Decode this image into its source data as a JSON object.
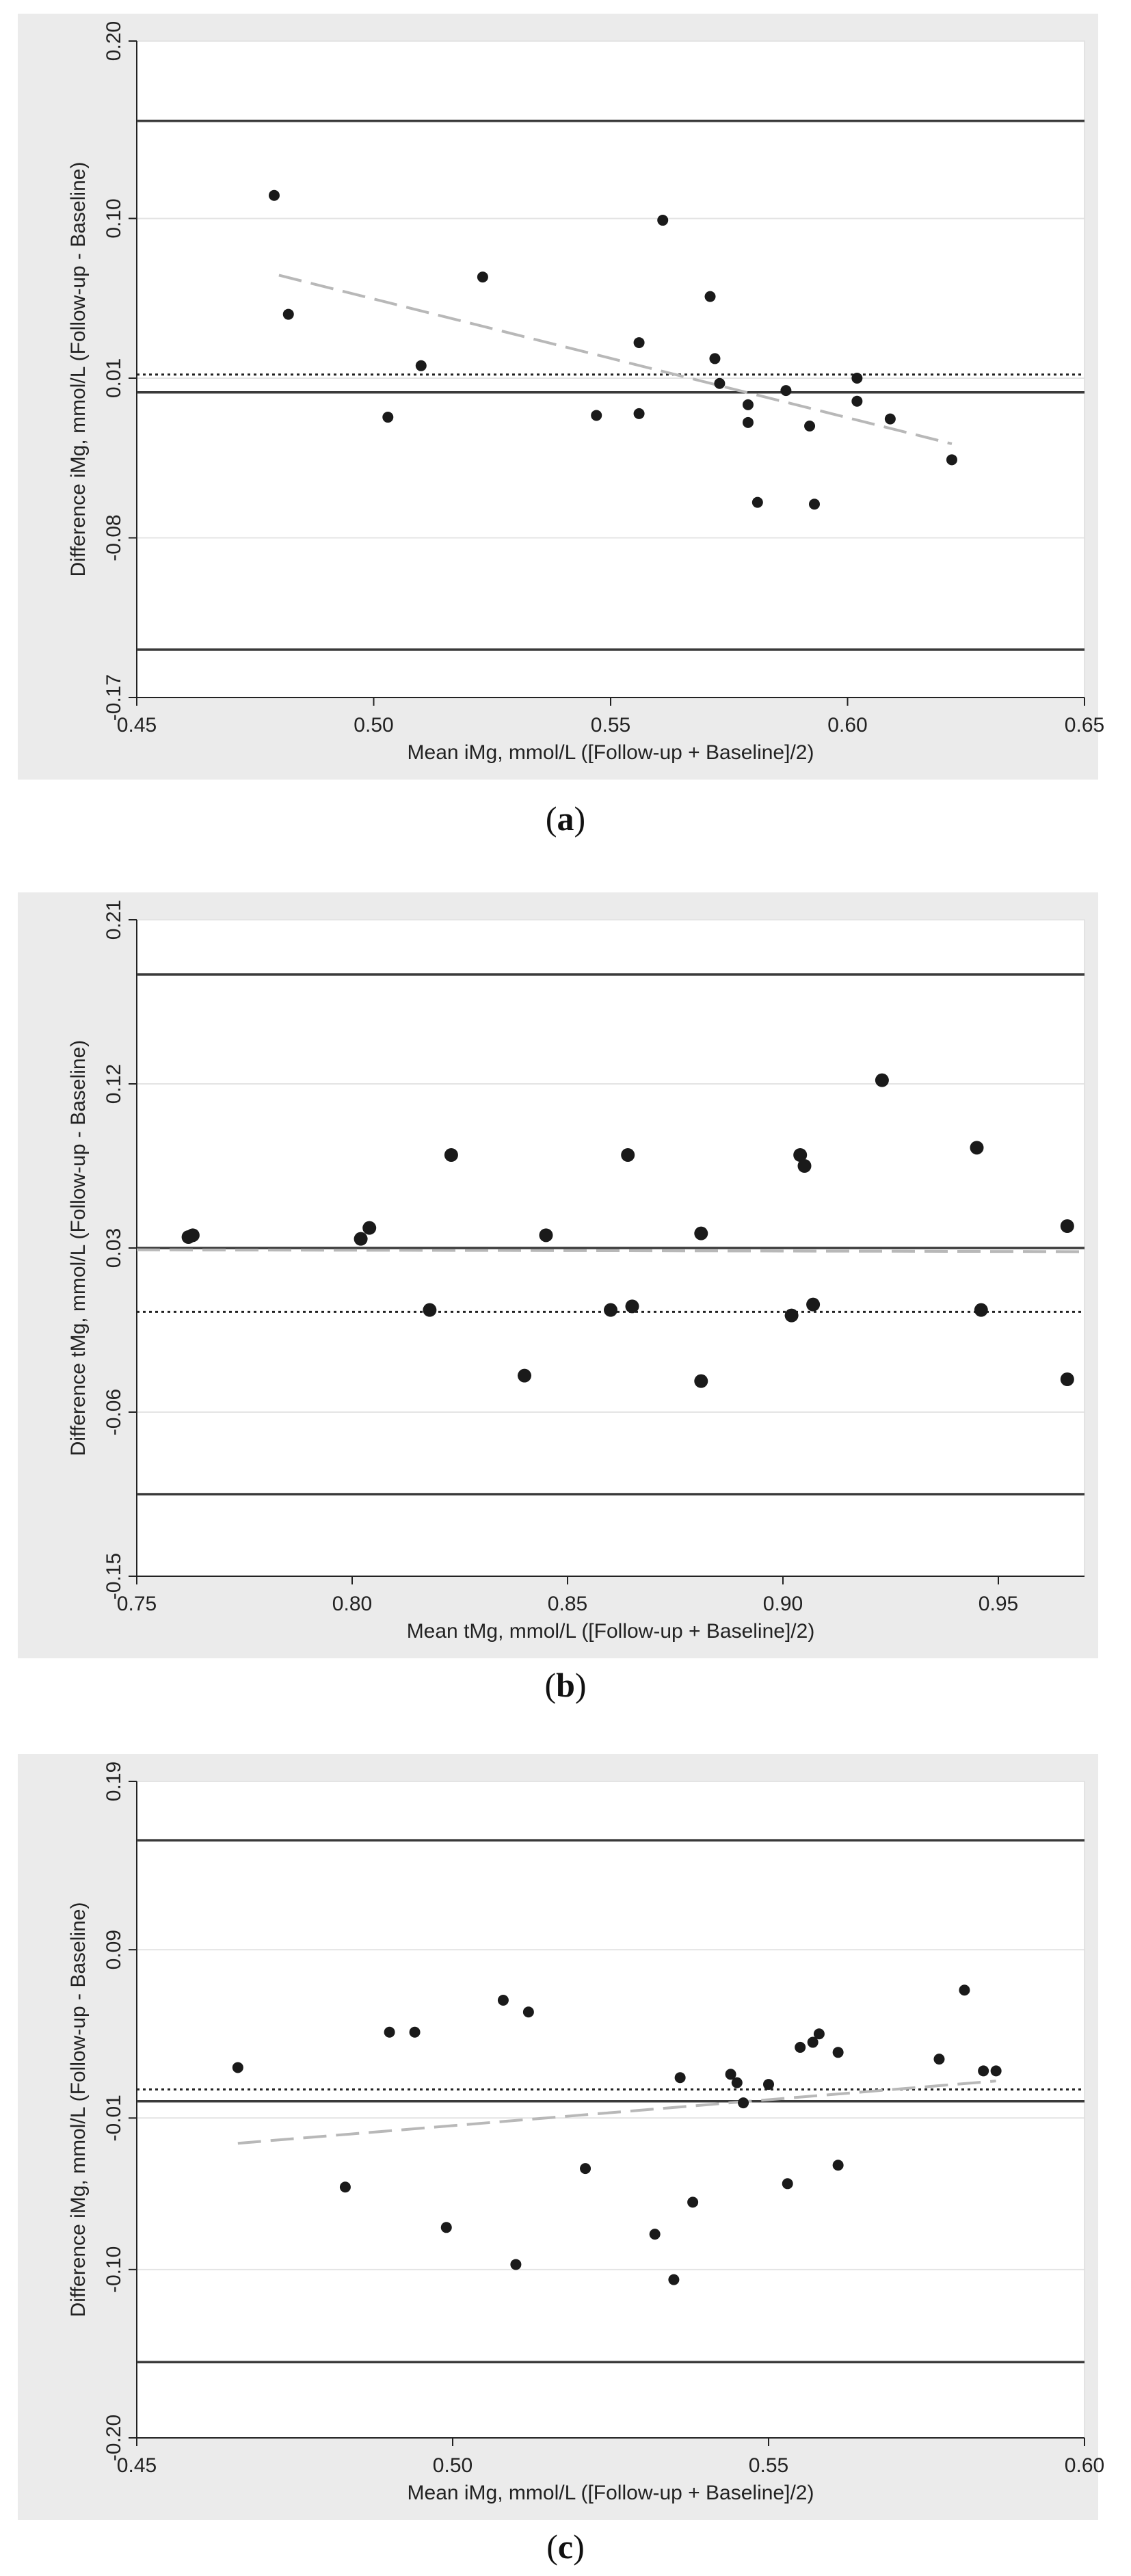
{
  "figures": [
    {
      "caption_letter": "a",
      "chart_data": {
        "type": "scatter",
        "xlabel": "Mean iMg, mmol/L ([Follow-up + Baseline]/2)",
        "ylabel": "Difference iMg, mmol/L (Follow-up - Baseline)",
        "xlim": [
          0.45,
          0.65
        ],
        "ylim": [
          -0.17,
          0.2
        ],
        "x_ticks": [
          "0.45",
          "0.50",
          "0.55",
          "0.60",
          "0.65"
        ],
        "y_ticks": [
          "-0.17",
          "-0.08",
          "0.01",
          "0.10",
          "0.20"
        ],
        "y_tick_values": [
          -0.17,
          -0.08,
          0.01,
          0.1,
          0.2
        ],
        "grid": "horizontal",
        "reference_lines": {
          "upper_loa": 0.155,
          "mean_difference": 0.012,
          "lower_loa": -0.143,
          "zero": 0.002
        },
        "regression_line": {
          "style": "dashed",
          "x": [
            0.48,
            0.622
          ],
          "y": [
            0.068,
            -0.027
          ]
        },
        "points": [
          {
            "x": 0.479,
            "y": 0.113
          },
          {
            "x": 0.482,
            "y": 0.046
          },
          {
            "x": 0.503,
            "y": -0.012
          },
          {
            "x": 0.51,
            "y": 0.017
          },
          {
            "x": 0.523,
            "y": 0.067
          },
          {
            "x": 0.547,
            "y": -0.011
          },
          {
            "x": 0.556,
            "y": 0.03
          },
          {
            "x": 0.556,
            "y": -0.01
          },
          {
            "x": 0.561,
            "y": 0.099
          },
          {
            "x": 0.571,
            "y": 0.056
          },
          {
            "x": 0.572,
            "y": 0.021
          },
          {
            "x": 0.573,
            "y": 0.007
          },
          {
            "x": 0.579,
            "y": -0.005
          },
          {
            "x": 0.579,
            "y": -0.015
          },
          {
            "x": 0.581,
            "y": -0.06
          },
          {
            "x": 0.587,
            "y": 0.003
          },
          {
            "x": 0.592,
            "y": -0.017
          },
          {
            "x": 0.593,
            "y": -0.061
          },
          {
            "x": 0.602,
            "y": -0.003
          },
          {
            "x": 0.602,
            "y": 0.01
          },
          {
            "x": 0.609,
            "y": -0.013
          },
          {
            "x": 0.622,
            "y": -0.036
          }
        ]
      }
    },
    {
      "caption_letter": "b",
      "chart_data": {
        "type": "scatter",
        "xlabel": "Mean tMg, mmol/L ([Follow-up + Baseline]/2)",
        "ylabel": "Difference tMg, mmol/L (Follow-up - Baseline)",
        "xlim": [
          0.75,
          0.97
        ],
        "ylim": [
          -0.15,
          0.21
        ],
        "x_ticks": [
          "0.75",
          "0.80",
          "0.85",
          "0.90",
          "0.95"
        ],
        "y_ticks": [
          "-0.15",
          "-0.06",
          "0.03",
          "0.12",
          "0.21"
        ],
        "y_tick_values": [
          -0.15,
          -0.06,
          0.03,
          0.12,
          0.21
        ],
        "grid": "horizontal",
        "reference_lines": {
          "upper_loa": 0.18,
          "mean_difference": -0.005,
          "lower_loa": -0.105,
          "zero": 0.03
        },
        "regression_line": {
          "style": "dashed",
          "x": [
            0.75,
            0.97
          ],
          "y": [
            0.029,
            0.028
          ]
        },
        "points": [
          {
            "x": 0.762,
            "y": 0.036
          },
          {
            "x": 0.763,
            "y": 0.037
          },
          {
            "x": 0.802,
            "y": 0.035
          },
          {
            "x": 0.804,
            "y": 0.041
          },
          {
            "x": 0.818,
            "y": -0.004
          },
          {
            "x": 0.823,
            "y": 0.081
          },
          {
            "x": 0.84,
            "y": -0.04
          },
          {
            "x": 0.845,
            "y": 0.037
          },
          {
            "x": 0.86,
            "y": -0.004
          },
          {
            "x": 0.864,
            "y": 0.081
          },
          {
            "x": 0.865,
            "y": -0.002
          },
          {
            "x": 0.881,
            "y": 0.038
          },
          {
            "x": 0.881,
            "y": -0.043
          },
          {
            "x": 0.902,
            "y": -0.007
          },
          {
            "x": 0.904,
            "y": 0.081
          },
          {
            "x": 0.905,
            "y": 0.075
          },
          {
            "x": 0.907,
            "y": -0.001
          },
          {
            "x": 0.923,
            "y": 0.122
          },
          {
            "x": 0.945,
            "y": 0.085
          },
          {
            "x": 0.946,
            "y": -0.004
          },
          {
            "x": 0.966,
            "y": 0.042
          },
          {
            "x": 0.966,
            "y": -0.042
          }
        ]
      }
    },
    {
      "caption_letter": "c",
      "chart_data": {
        "type": "scatter",
        "xlabel": "Mean iMg, mmol/L ([Follow-up + Baseline]/2)",
        "ylabel": "Difference iMg, mmol/L (Follow-up - Baseline)",
        "xlim": [
          0.45,
          0.6
        ],
        "ylim": [
          -0.2,
          0.19
        ],
        "x_ticks": [
          "0.45",
          "0.50",
          "0.55",
          "0.60"
        ],
        "y_ticks": [
          "-0.20",
          "-0.10",
          "-0.01",
          "0.09",
          "0.19"
        ],
        "y_tick_values": [
          -0.2,
          -0.1,
          -0.01,
          0.09,
          0.19
        ],
        "grid": "horizontal",
        "reference_lines": {
          "upper_loa": 0.155,
          "mean_difference": 0.007,
          "lower_loa": -0.155,
          "zero": 0.0
        },
        "regression_line": {
          "style": "dashed",
          "x": [
            0.466,
            0.586
          ],
          "y": [
            -0.025,
            0.012
          ]
        },
        "points": [
          {
            "x": 0.466,
            "y": 0.02
          },
          {
            "x": 0.483,
            "y": -0.051
          },
          {
            "x": 0.49,
            "y": 0.041
          },
          {
            "x": 0.494,
            "y": 0.041
          },
          {
            "x": 0.499,
            "y": -0.075
          },
          {
            "x": 0.508,
            "y": 0.06
          },
          {
            "x": 0.51,
            "y": -0.097
          },
          {
            "x": 0.512,
            "y": 0.053
          },
          {
            "x": 0.521,
            "y": -0.04
          },
          {
            "x": 0.532,
            "y": -0.079
          },
          {
            "x": 0.535,
            "y": -0.106
          },
          {
            "x": 0.536,
            "y": 0.014
          },
          {
            "x": 0.538,
            "y": -0.06
          },
          {
            "x": 0.544,
            "y": 0.016
          },
          {
            "x": 0.545,
            "y": 0.011
          },
          {
            "x": 0.546,
            "y": -0.001
          },
          {
            "x": 0.55,
            "y": 0.01
          },
          {
            "x": 0.553,
            "y": -0.049
          },
          {
            "x": 0.555,
            "y": 0.032
          },
          {
            "x": 0.557,
            "y": 0.035
          },
          {
            "x": 0.558,
            "y": 0.04
          },
          {
            "x": 0.561,
            "y": 0.029
          },
          {
            "x": 0.561,
            "y": -0.038
          },
          {
            "x": 0.577,
            "y": 0.025
          },
          {
            "x": 0.581,
            "y": 0.066
          },
          {
            "x": 0.584,
            "y": 0.018
          },
          {
            "x": 0.586,
            "y": 0.018
          }
        ]
      }
    }
  ]
}
